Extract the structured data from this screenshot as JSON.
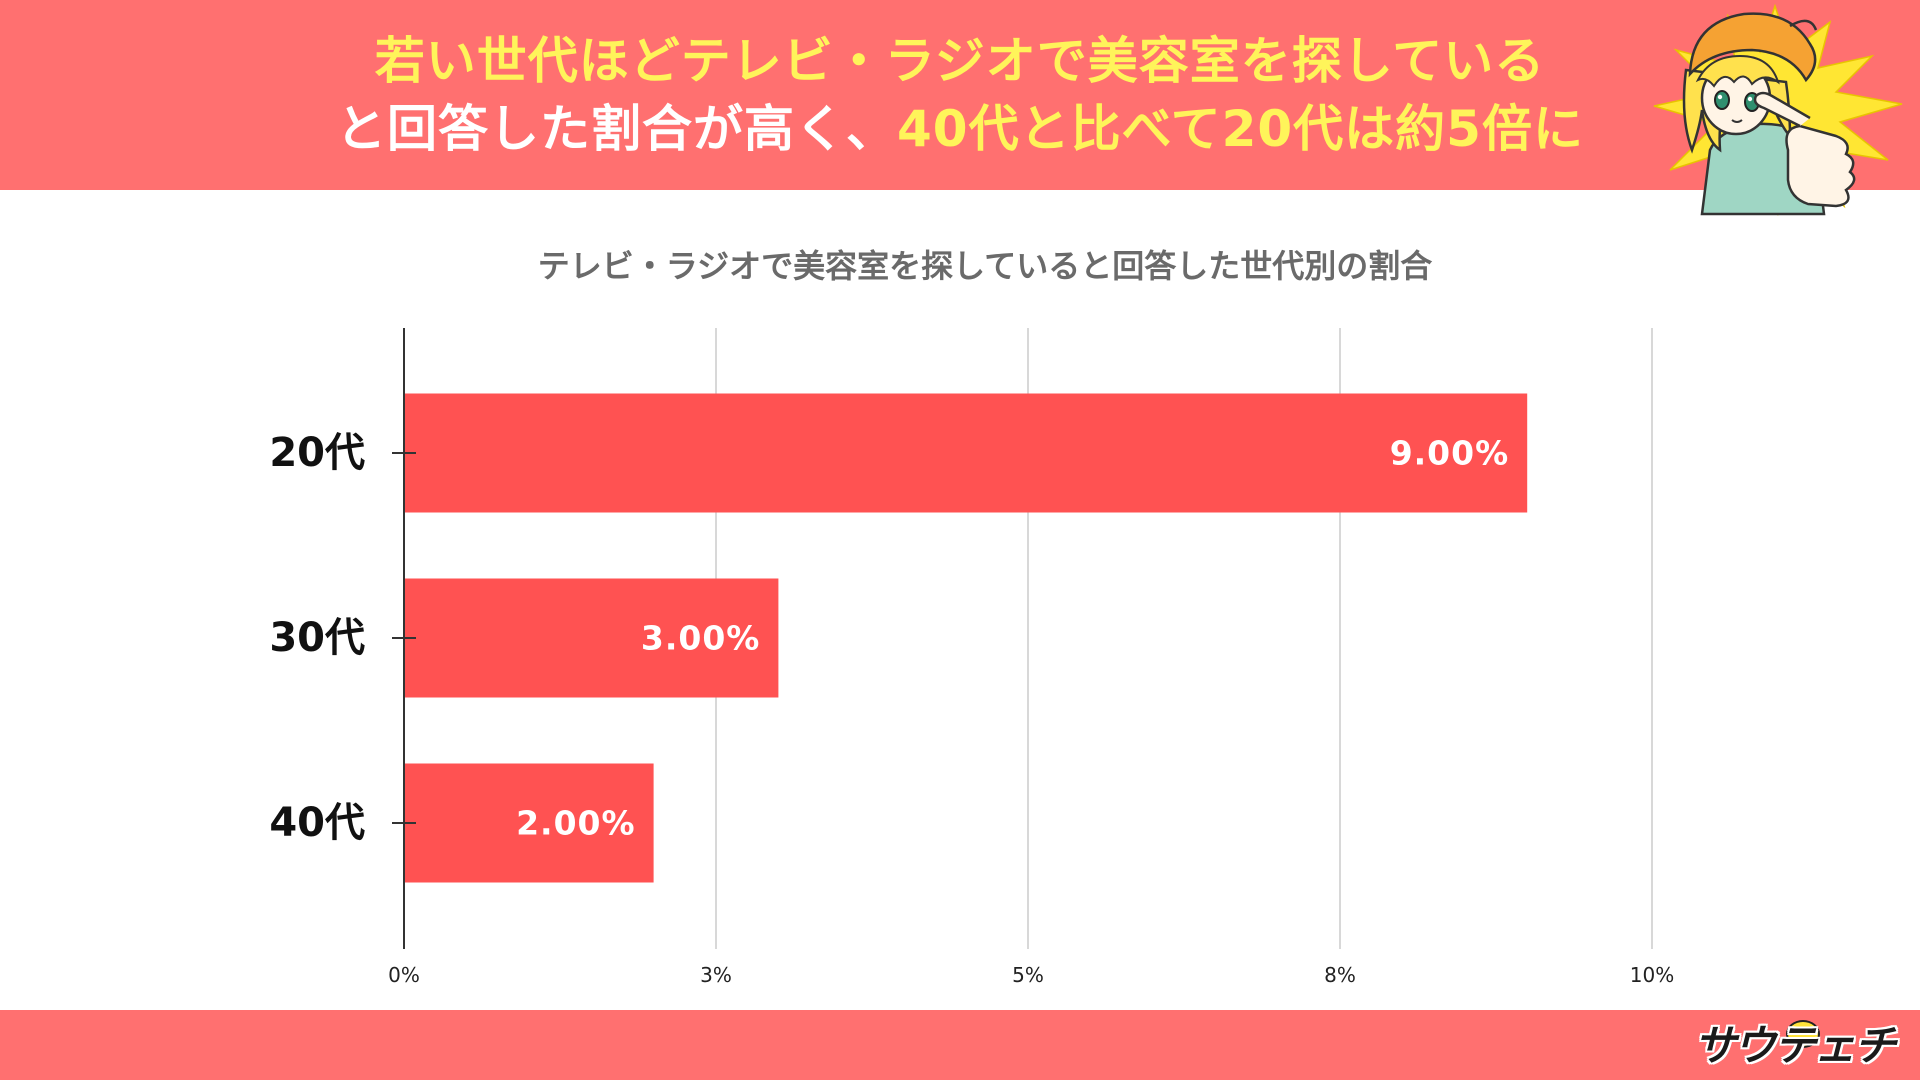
{
  "colors": {
    "banner": "#ff7070",
    "headline_yellow": "#fff45a",
    "headline_white": "#ffffff",
    "bar": "#ff5252",
    "chart_title": "#6a6a6a",
    "grid": "#cccccc",
    "axis": "#333333"
  },
  "header": {
    "line1": "若い世代ほどテレビ・ラジオで美容室を探している",
    "line2_white": "と回答した割合が高く、",
    "line2_yellow": "40代と比べて20代は約5倍に"
  },
  "mascot": {
    "icon": "pointing-girl-mascot-illustration"
  },
  "chart_data": {
    "type": "bar",
    "orientation": "horizontal",
    "title": "テレビ・ラジオで美容室を探していると回答した世代別の割合",
    "categories": [
      "20代",
      "30代",
      "40代"
    ],
    "values": [
      9.0,
      3.0,
      2.0
    ],
    "value_labels": [
      "9.00%",
      "3.00%",
      "2.00%"
    ],
    "xlim": [
      0,
      10
    ],
    "xticks": [
      0,
      2.5,
      5,
      7.5,
      10
    ],
    "xtick_labels": [
      "0%",
      "3%",
      "5%",
      "8%",
      "10%"
    ],
    "xlabel": "",
    "ylabel": "",
    "grid": true,
    "legend": "none"
  },
  "footer": {
    "logo_text": "サウテェチ"
  }
}
